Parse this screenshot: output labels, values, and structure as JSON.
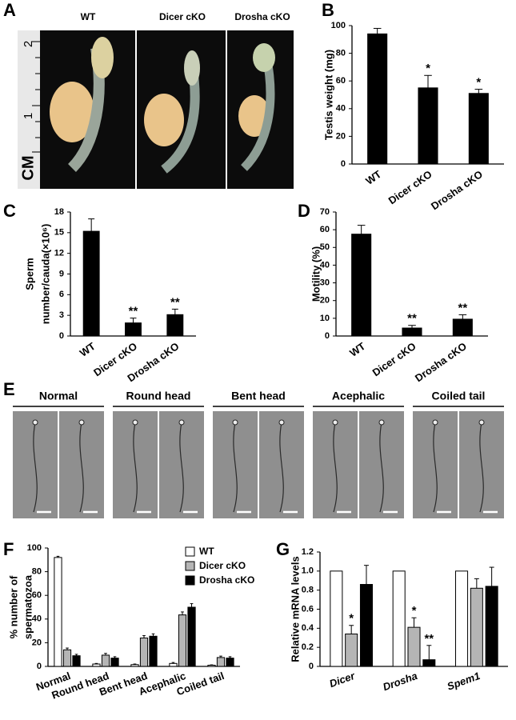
{
  "photo_a": {
    "letter": "A",
    "labels": [
      "WT",
      "Dicer cKO",
      "Drosha cKO"
    ],
    "ruler": {
      "unit": "CM",
      "marks": [
        "1",
        "2"
      ]
    }
  },
  "photo_e": {
    "letter": "E",
    "labels": [
      "Normal",
      "Round head",
      "Bent head",
      "Acephalic",
      "Coiled tail"
    ]
  },
  "chart_data": [
    {
      "type": "bar",
      "letter": "B",
      "y_label": [
        "Testis weight (mg)"
      ],
      "categories": [
        "WT",
        "Dicer cKO",
        "Drosha cKO"
      ],
      "values": [
        94,
        55,
        51
      ],
      "errors": [
        4,
        9,
        3
      ],
      "significance": [
        null,
        "*",
        "*"
      ],
      "color": "#000000",
      "ylim": [
        0,
        100
      ],
      "yticks": [
        0,
        20,
        40,
        60,
        80,
        100
      ]
    },
    {
      "type": "bar",
      "letter": "C",
      "y_label": [
        "Sperm",
        "number/cauda(×10⁶)"
      ],
      "categories": [
        "WT",
        "Dicer cKO",
        "Drosha cKO"
      ],
      "values": [
        15.2,
        1.9,
        3.1
      ],
      "errors": [
        1.8,
        0.7,
        0.8
      ],
      "significance": [
        null,
        "**",
        "**"
      ],
      "color": "#000000",
      "ylim": [
        0,
        18
      ],
      "yticks": [
        0,
        3,
        6,
        9,
        12,
        15,
        18
      ]
    },
    {
      "type": "bar",
      "letter": "D",
      "y_label": [
        "Motility (%)"
      ],
      "categories": [
        "WT",
        "Dicer cKO",
        "Drosha cKO"
      ],
      "values": [
        57.5,
        4.5,
        9.5
      ],
      "errors": [
        5,
        1.5,
        2.5
      ],
      "significance": [
        null,
        "**",
        "**"
      ],
      "color": "#000000",
      "ylim": [
        0,
        70
      ],
      "yticks": [
        0,
        10,
        20,
        30,
        40,
        50,
        60,
        70
      ]
    },
    {
      "type": "grouped_bar",
      "letter": "F",
      "y_label": [
        "% number of",
        "spermatozoa"
      ],
      "categories": [
        "Normal",
        "Round head",
        "Bent head",
        "Acephalic",
        "Coiled tail"
      ],
      "series": [
        {
          "name": "WT",
          "color": "#ffffff",
          "values": [
            92,
            2,
            1.5,
            2.5,
            1
          ],
          "errors": [
            1,
            0.5,
            0.5,
            0.8,
            0.3
          ]
        },
        {
          "name": "Dicer cKO",
          "color": "#b5b5b5",
          "values": [
            14,
            9.5,
            24,
            43.5,
            7.5
          ],
          "errors": [
            1.5,
            1.5,
            2,
            2.5,
            1.2
          ]
        },
        {
          "name": "Drosha cKO",
          "color": "#000000",
          "values": [
            9,
            7,
            25.5,
            50,
            7
          ],
          "errors": [
            1.2,
            1.2,
            2,
            3,
            1.2
          ]
        }
      ],
      "ylim": [
        0,
        100
      ],
      "yticks": [
        0,
        20,
        40,
        60,
        80,
        100
      ],
      "legend": "upper right"
    },
    {
      "type": "grouped_bar",
      "letter": "G",
      "y_label": [
        "Relative mRNA levels"
      ],
      "categories": [
        "Dicer",
        "Drosha",
        "Spem1"
      ],
      "series": [
        {
          "name": "WT",
          "color": "#ffffff",
          "values": [
            1,
            1,
            1
          ],
          "errors": [
            0,
            0,
            0
          ]
        },
        {
          "name": "Dicer cKO",
          "color": "#b5b5b5",
          "values": [
            0.34,
            0.41,
            0.82
          ],
          "errors": [
            0.09,
            0.1,
            0.1
          ],
          "significance": [
            "*",
            "*",
            null
          ]
        },
        {
          "name": "Drosha cKO",
          "color": "#000000",
          "values": [
            0.86,
            0.07,
            0.84
          ],
          "errors": [
            0.2,
            0.15,
            0.2
          ],
          "significance": [
            null,
            "**",
            null
          ]
        }
      ],
      "ylim": [
        0,
        1.2
      ],
      "yticks": [
        0,
        0.2,
        0.4,
        0.6,
        0.8,
        {
          "value": 1,
          "label": "1.0"
        },
        {
          "value": 1.2,
          "label": "1.2"
        }
      ]
    }
  ]
}
